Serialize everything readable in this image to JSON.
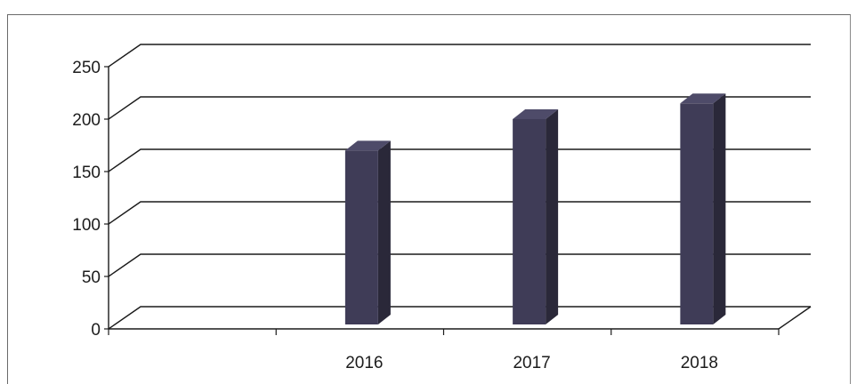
{
  "chart_data": {
    "type": "bar",
    "categories": [
      "",
      "2016",
      "2017",
      "2018"
    ],
    "values": [
      null,
      170,
      200,
      215
    ],
    "title": "",
    "xlabel": "",
    "ylabel": "",
    "ylim": [
      0,
      250
    ],
    "yticks": [
      0,
      50,
      100,
      150,
      200,
      250
    ],
    "grid": true,
    "style": "3d-column",
    "colors": {
      "bar_front": "#3f3c57",
      "bar_side": "#2a2839",
      "bar_top": "#4e4b69",
      "gridline": "#1a1a1a",
      "axis": "#1a1a1a"
    }
  }
}
